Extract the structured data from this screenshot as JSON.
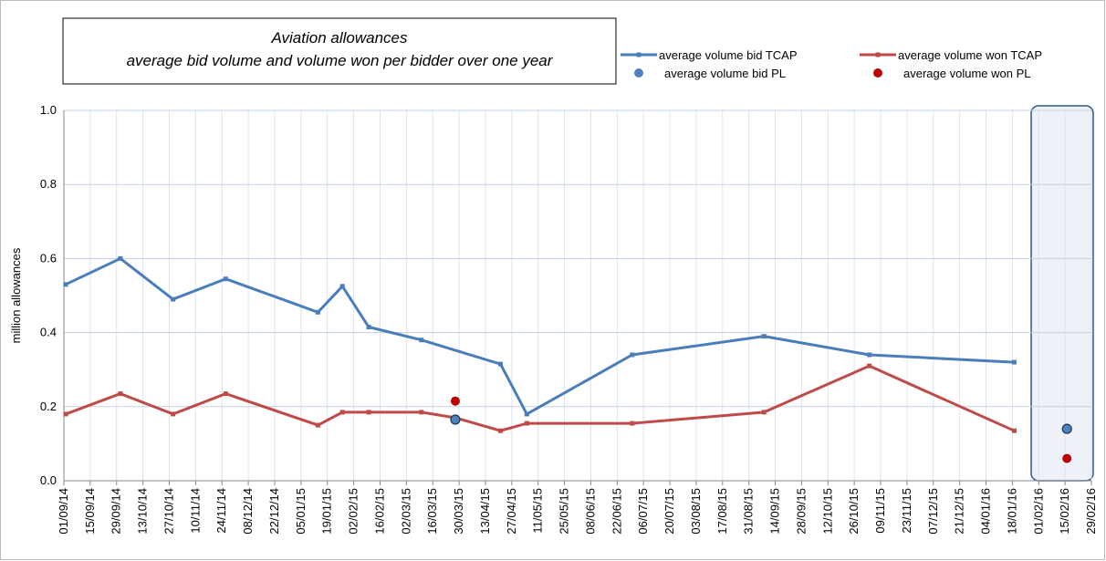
{
  "chart_data": {
    "type": "line",
    "title": "Aviation allowances",
    "subtitle": "average bid volume and volume won per bidder over one year",
    "ylabel": "million allowances",
    "ylim": [
      0,
      1
    ],
    "yticks": [
      {
        "value": 0,
        "label": "0.0"
      },
      0.2,
      0.4,
      0.6,
      0.8,
      {
        "value": 1,
        "label": "1.0"
      }
    ],
    "xlim": [
      "2014-09-01",
      "2016-02-29"
    ],
    "xticks": [
      {
        "value": "2014-09-01",
        "label": "01/09/14"
      },
      {
        "value": "2014-09-15",
        "label": "15/09/14"
      },
      {
        "value": "2014-09-29",
        "label": "29/09/14"
      },
      {
        "value": "2014-10-13",
        "label": "13/10/14"
      },
      {
        "value": "2014-10-27",
        "label": "27/10/14"
      },
      {
        "value": "2014-11-10",
        "label": "10/11/14"
      },
      {
        "value": "2014-11-24",
        "label": "24/11/14"
      },
      {
        "value": "2014-12-08",
        "label": "08/12/14"
      },
      {
        "value": "2014-12-22",
        "label": "22/12/14"
      },
      {
        "value": "2015-01-05",
        "label": "05/01/15"
      },
      {
        "value": "2015-01-19",
        "label": "19/01/15"
      },
      {
        "value": "2015-02-02",
        "label": "02/02/15"
      },
      {
        "value": "2015-02-16",
        "label": "16/02/15"
      },
      {
        "value": "2015-03-02",
        "label": "02/03/15"
      },
      {
        "value": "2015-03-16",
        "label": "16/03/15"
      },
      {
        "value": "2015-03-30",
        "label": "30/03/15"
      },
      {
        "value": "2015-04-13",
        "label": "13/04/15"
      },
      {
        "value": "2015-04-27",
        "label": "27/04/15"
      },
      {
        "value": "2015-05-11",
        "label": "11/05/15"
      },
      {
        "value": "2015-05-25",
        "label": "25/05/15"
      },
      {
        "value": "2015-06-08",
        "label": "08/06/15"
      },
      {
        "value": "2015-06-22",
        "label": "22/06/15"
      },
      {
        "value": "2015-07-06",
        "label": "06/07/15"
      },
      {
        "value": "2015-07-20",
        "label": "20/07/15"
      },
      {
        "value": "2015-08-03",
        "label": "03/08/15"
      },
      {
        "value": "2015-08-17",
        "label": "17/08/15"
      },
      {
        "value": "2015-08-31",
        "label": "31/08/15"
      },
      {
        "value": "2015-09-14",
        "label": "14/09/15"
      },
      {
        "value": "2015-09-28",
        "label": "28/09/15"
      },
      {
        "value": "2015-10-12",
        "label": "12/10/15"
      },
      {
        "value": "2015-10-26",
        "label": "26/10/15"
      },
      {
        "value": "2015-11-09",
        "label": "09/11/15"
      },
      {
        "value": "2015-11-23",
        "label": "23/11/15"
      },
      {
        "value": "2015-12-07",
        "label": "07/12/15"
      },
      {
        "value": "2015-12-21",
        "label": "21/12/15"
      },
      {
        "value": "2016-01-04",
        "label": "04/01/16"
      },
      {
        "value": "2016-01-18",
        "label": "18/01/16"
      },
      {
        "value": "2016-02-01",
        "label": "01/02/16"
      },
      {
        "value": "2016-02-15",
        "label": "15/02/16"
      },
      {
        "value": "2016-02-29",
        "label": "29/02/16"
      }
    ],
    "grid": true,
    "series": [
      {
        "name": "average volume bid TCAP",
        "color": "#4a7ebb",
        "style": "line",
        "x": [
          "2014-09-02",
          "2014-10-01",
          "2014-10-29",
          "2014-11-26",
          "2015-01-14",
          "2015-01-27",
          "2015-02-10",
          "2015-03-10",
          "2015-04-21",
          "2015-05-05",
          "2015-06-30",
          "2015-09-08",
          "2015-11-03",
          "2016-01-19"
        ],
        "values": [
          0.53,
          0.6,
          0.49,
          0.545,
          0.455,
          0.525,
          0.415,
          0.38,
          0.315,
          0.18,
          0.34,
          0.39,
          0.34,
          0.32
        ]
      },
      {
        "name": "average volume won TCAP",
        "color": "#be4b48",
        "style": "line",
        "x": [
          "2014-09-02",
          "2014-10-01",
          "2014-10-29",
          "2014-11-26",
          "2015-01-14",
          "2015-01-27",
          "2015-02-10",
          "2015-03-10",
          "2015-03-28",
          "2015-04-21",
          "2015-05-05",
          "2015-06-30",
          "2015-09-08",
          "2015-11-03",
          "2016-01-19"
        ],
        "values": [
          0.18,
          0.235,
          0.18,
          0.235,
          0.15,
          0.185,
          0.185,
          0.185,
          0.17,
          0.135,
          0.155,
          0.155,
          0.185,
          0.31,
          0.135
        ]
      },
      {
        "name": "average volume bid PL",
        "color": "#4f81bd",
        "style": "dot",
        "x": [
          "2015-03-28",
          "2016-02-16"
        ],
        "values": [
          0.165,
          0.14
        ]
      },
      {
        "name": "average volume won PL",
        "color": "#c00000",
        "style": "dot",
        "x": [
          "2015-03-28",
          "2016-02-16"
        ],
        "values": [
          0.215,
          0.06
        ]
      }
    ]
  }
}
